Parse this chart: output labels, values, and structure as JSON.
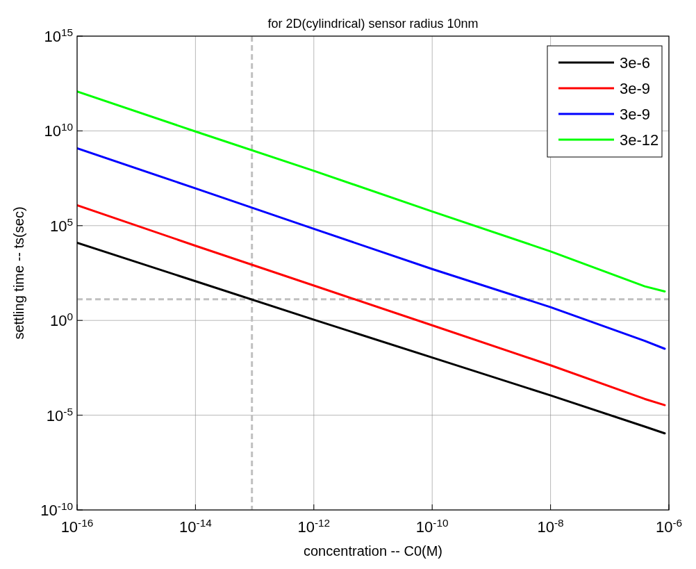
{
  "chart_data": {
    "type": "line",
    "title": "for 2D(cylindrical) sensor radius 10nm",
    "xlabel": "concentration -- C0(M)",
    "ylabel": "settling time -- ts(sec)",
    "x": [
      1e-16,
      1e-14,
      1e-12,
      1e-10,
      1e-08,
      3.9e-07,
      8.5e-07
    ],
    "series": [
      {
        "name": "3e-6",
        "color": "#000000",
        "values": [
          12600.0,
          117,
          1.1,
          0.011,
          0.00011,
          2.5e-06,
          1.1e-06
        ]
      },
      {
        "name": "3e-9",
        "color": "#ff0000",
        "values": [
          1200000.0,
          8700,
          69,
          0.55,
          0.0043,
          7.2e-05,
          3.4e-05
        ]
      },
      {
        "name": "3e-9",
        "color": "#0000ff",
        "values": [
          1200000000.0,
          9300000.0,
          68000.0,
          513,
          5,
          0.083,
          0.032
        ]
      },
      {
        "name": "3e-12",
        "color": "#00ff00",
        "values": [
          1200000000000.0,
          9300000000.0,
          78000000.0,
          560000.0,
          4400,
          63,
          34
        ]
      }
    ],
    "log": "xy",
    "xlim": [
      1e-16,
      1e-06
    ],
    "ylim": [
      1e-10,
      1000000000000000.0
    ],
    "xticks": [
      {
        "value": 1e-16,
        "label": "10$^{-16}$"
      },
      {
        "value": 1e-14,
        "label": "10$^{-14}$"
      },
      {
        "value": 1e-12,
        "label": "10$^{-12}$"
      },
      {
        "value": 1e-10,
        "label": "10$^{-10}$"
      },
      {
        "value": 1e-08,
        "label": "10$^{-8}$"
      },
      {
        "value": 1e-06,
        "label": "10$^{-6}$"
      }
    ],
    "yticks": [
      {
        "value": 1e-10,
        "label": "10$^{-10}$"
      },
      {
        "value": 1e-05,
        "label": "10$^{-5}$"
      },
      {
        "value": 1,
        "label": "10$^{0}$"
      },
      {
        "value": 100000.0,
        "label": "10$^{5}$"
      },
      {
        "value": 10000000000.0,
        "label": "10$^{10}$"
      },
      {
        "value": 1000000000000000.0,
        "label": "10$^{15}$"
      }
    ],
    "ref_lines": [
      {
        "axis": "x",
        "value": 9e-14,
        "color": "#c0c0c0",
        "line_style": "dashed"
      },
      {
        "axis": "y",
        "value": 13,
        "color": "#c0c0c0",
        "line_style": "dashed"
      }
    ],
    "grid": true,
    "legend": "top right",
    "line_style": "solid",
    "marker": "none"
  }
}
